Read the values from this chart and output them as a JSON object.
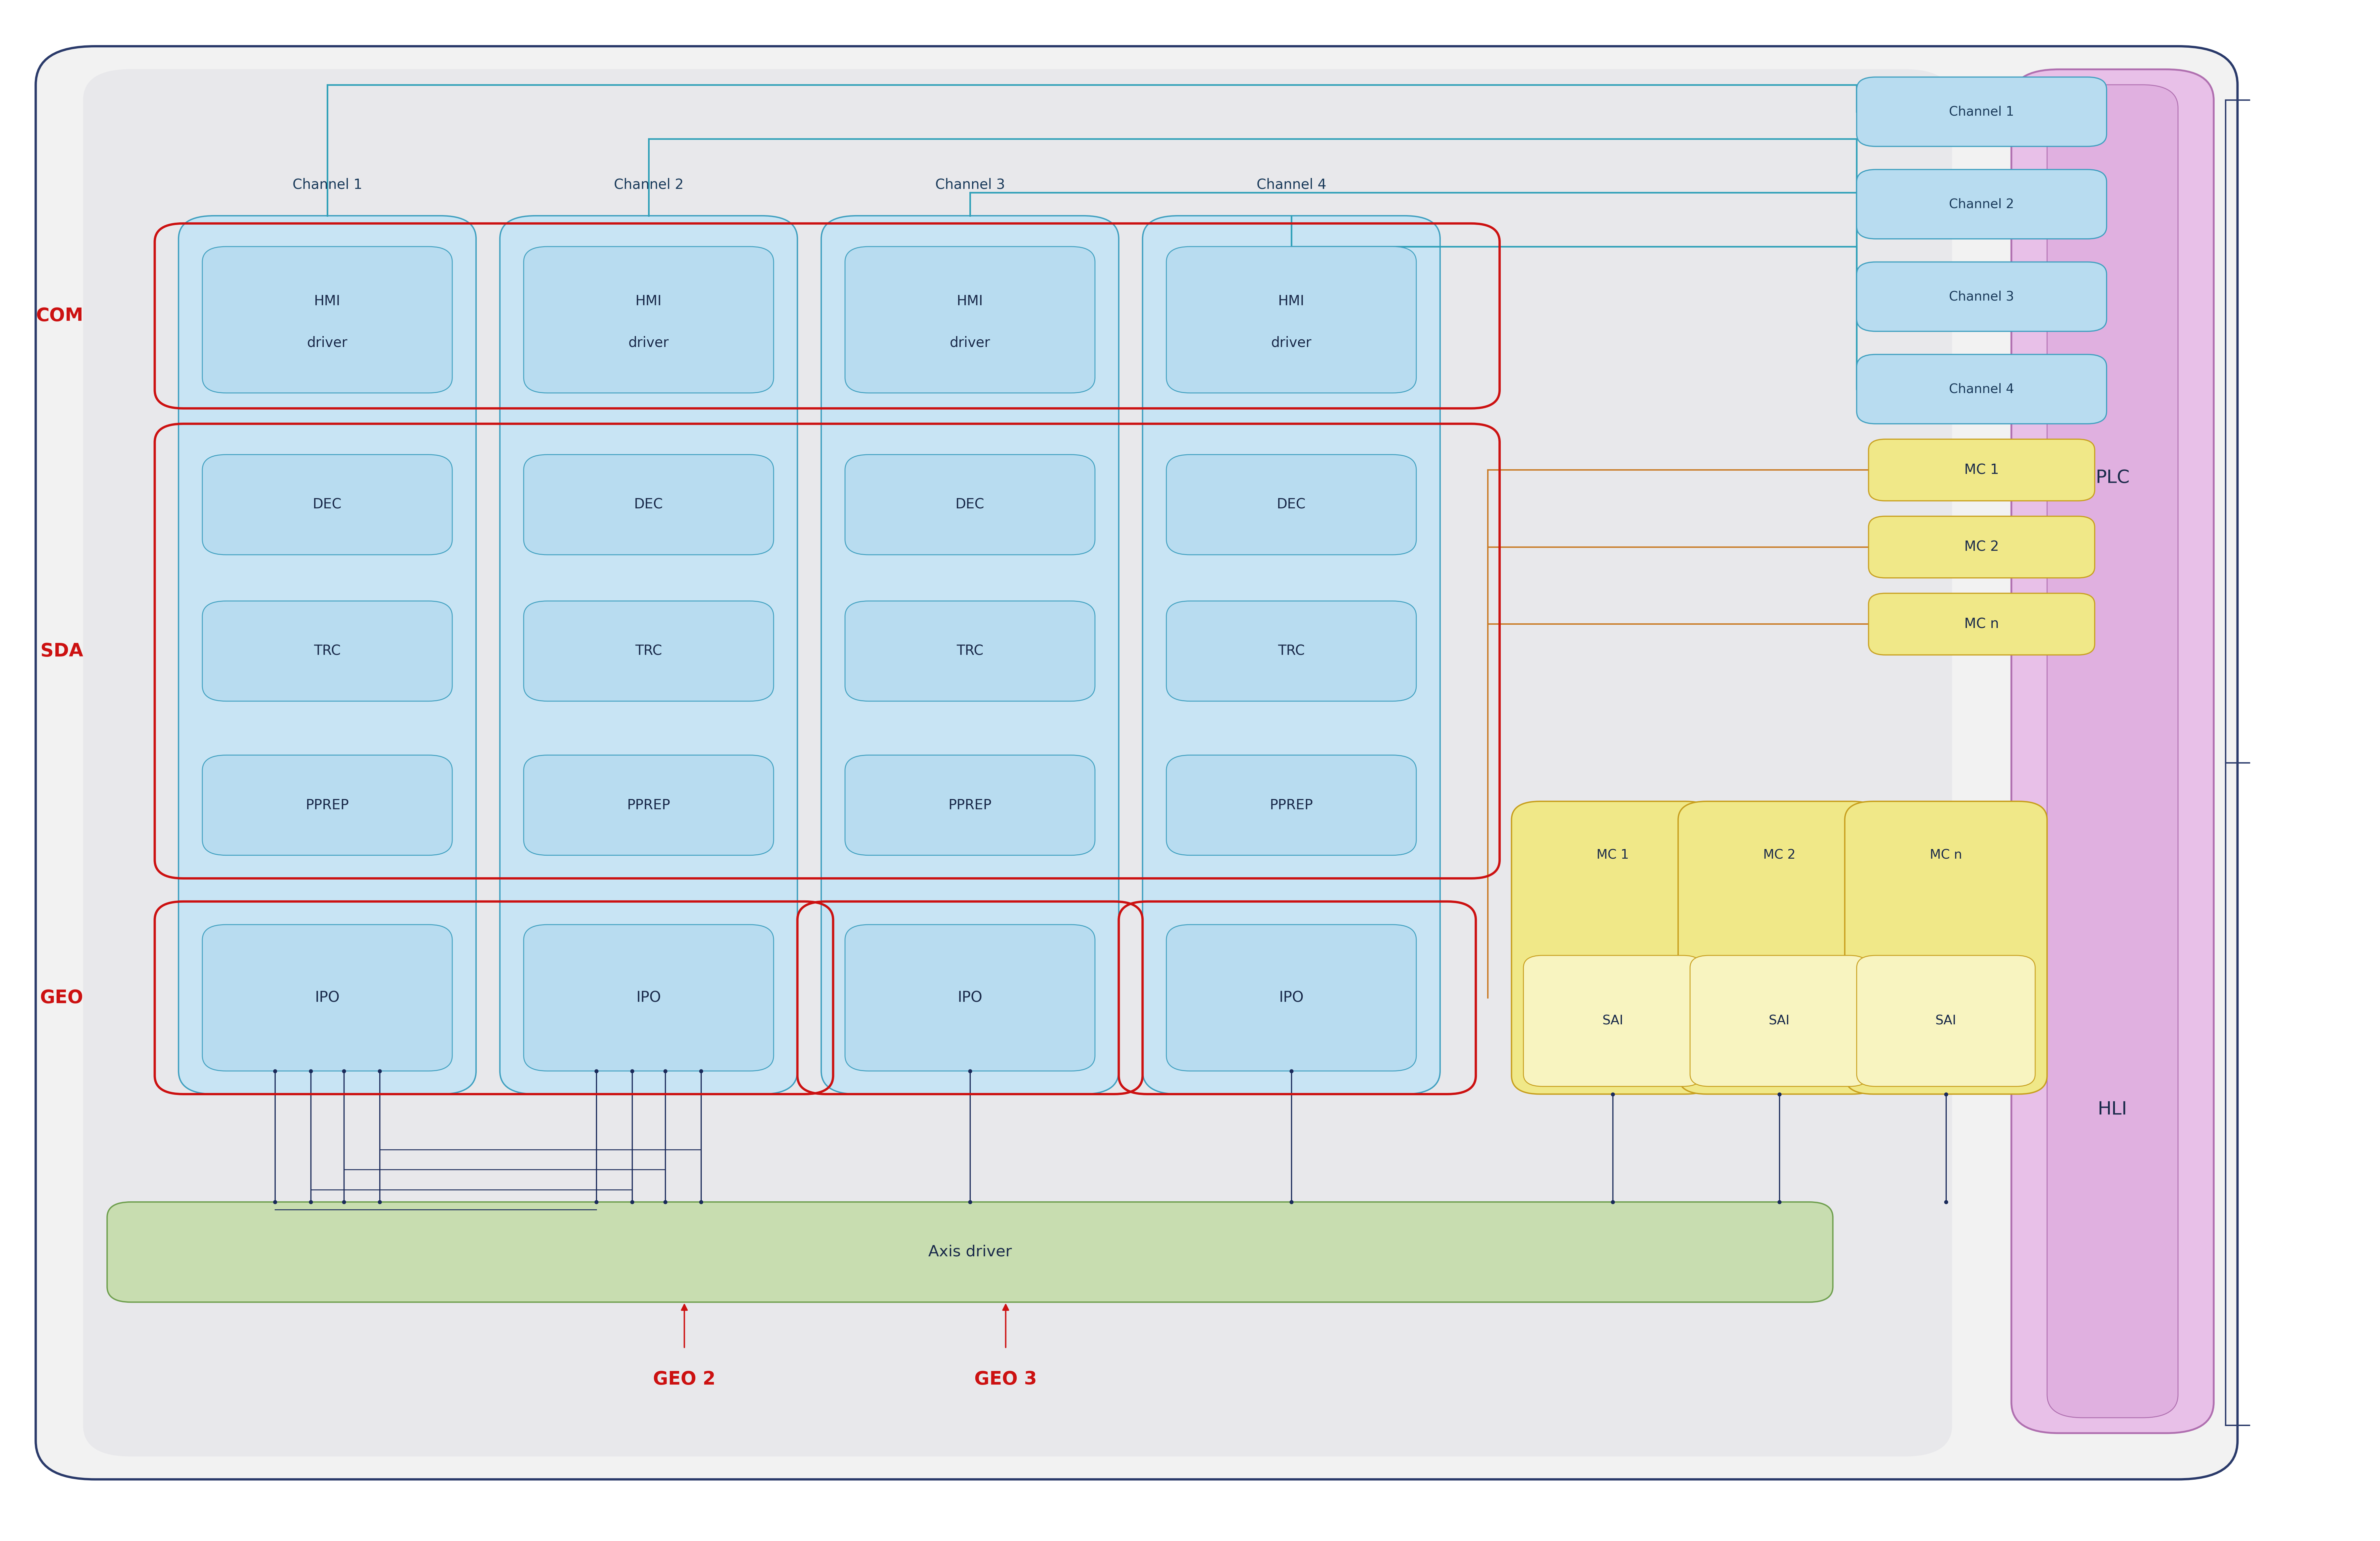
{
  "fig_width": 71.85,
  "fig_height": 46.5,
  "outer_bg": "#f2f2f2",
  "outer_border_color": "#2a3a6a",
  "inner_bg": "#e8e8eb",
  "channel_box_fill": "#c8e4f4",
  "channel_box_edge": "#40a0c0",
  "channel_label_color": "#1a3a5a",
  "inner_box_fill": "#b8dcf0",
  "inner_box_edge": "#40a0c0",
  "com_border_color": "#cc1111",
  "sda_border_color": "#cc1111",
  "geo_border_color": "#cc1111",
  "axis_driver_fill": "#c8ddb0",
  "axis_driver_edge": "#70a050",
  "mc_outer_fill": "#f0e888",
  "mc_outer_edge": "#c8a020",
  "mc_inner_fill": "#f8f4c0",
  "mc_inner_edge": "#c8a020",
  "hli_fill": "#e8c0e8",
  "hli_edge": "#b070b0",
  "hli_inner_fill": "#e0b0e0",
  "channel_right_fill": "#b8dcf0",
  "channel_right_edge": "#40a0c0",
  "mc_right_fill": "#f0e888",
  "mc_right_edge": "#c8a020",
  "teal_line": "#30a0b8",
  "orange_line": "#c87820",
  "dark_line": "#1a2a5a",
  "red_color": "#cc1111",
  "text_dark": "#1a2a4a",
  "text_red": "#cc1111",
  "com_label": "COM",
  "sda_label": "SDA",
  "geo_label": "GEO",
  "plc_label": "PLC",
  "hli_label": "HLI",
  "axis_driver_label": "Axis driver",
  "geo2_label": "GEO 2",
  "geo3_label": "GEO 3",
  "ch_labels": [
    "Channel 1",
    "Channel 2",
    "Channel 3",
    "Channel 4"
  ],
  "ch_right_labels": [
    "Channel 1",
    "Channel 2",
    "Channel 3",
    "Channel 4"
  ],
  "mc_labels": [
    "MC 1",
    "MC 2",
    "MC n"
  ],
  "mc_right_labels": [
    "MC 1",
    "MC 2",
    "MC n"
  ]
}
